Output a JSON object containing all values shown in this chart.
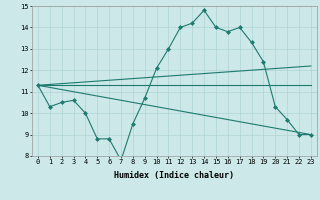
{
  "line1_x": [
    0,
    1,
    2,
    3,
    4,
    5,
    6,
    7,
    8,
    9,
    10,
    11,
    12,
    13,
    14,
    15,
    16,
    17,
    18,
    19,
    20,
    21,
    22,
    23
  ],
  "line1_y": [
    11.3,
    10.3,
    10.5,
    10.6,
    10.0,
    8.8,
    8.8,
    7.8,
    9.5,
    10.7,
    12.1,
    13.0,
    14.0,
    14.2,
    14.8,
    14.0,
    13.8,
    14.0,
    13.3,
    12.4,
    10.3,
    9.7,
    9.0,
    9.0
  ],
  "line2_x": [
    0,
    23
  ],
  "line2_y": [
    11.3,
    12.2
  ],
  "line3_x": [
    0,
    23
  ],
  "line3_y": [
    11.3,
    11.3
  ],
  "line4_x": [
    0,
    23
  ],
  "line4_y": [
    11.3,
    9.0
  ],
  "xlim": [
    -0.5,
    23.5
  ],
  "ylim": [
    8,
    15
  ],
  "yticks": [
    8,
    9,
    10,
    11,
    12,
    13,
    14,
    15
  ],
  "xticks": [
    0,
    1,
    2,
    3,
    4,
    5,
    6,
    7,
    8,
    9,
    10,
    11,
    12,
    13,
    14,
    15,
    16,
    17,
    18,
    19,
    20,
    21,
    22,
    23
  ],
  "xlabel": "Humidex (Indice chaleur)",
  "bg_color": "#cce8e8",
  "line_color": "#1e7a6e",
  "grid_color": "#aad0d0",
  "marker": "D",
  "marker_size": 2.0,
  "linewidth": 0.8,
  "tick_fontsize": 5.0,
  "xlabel_fontsize": 6.0
}
